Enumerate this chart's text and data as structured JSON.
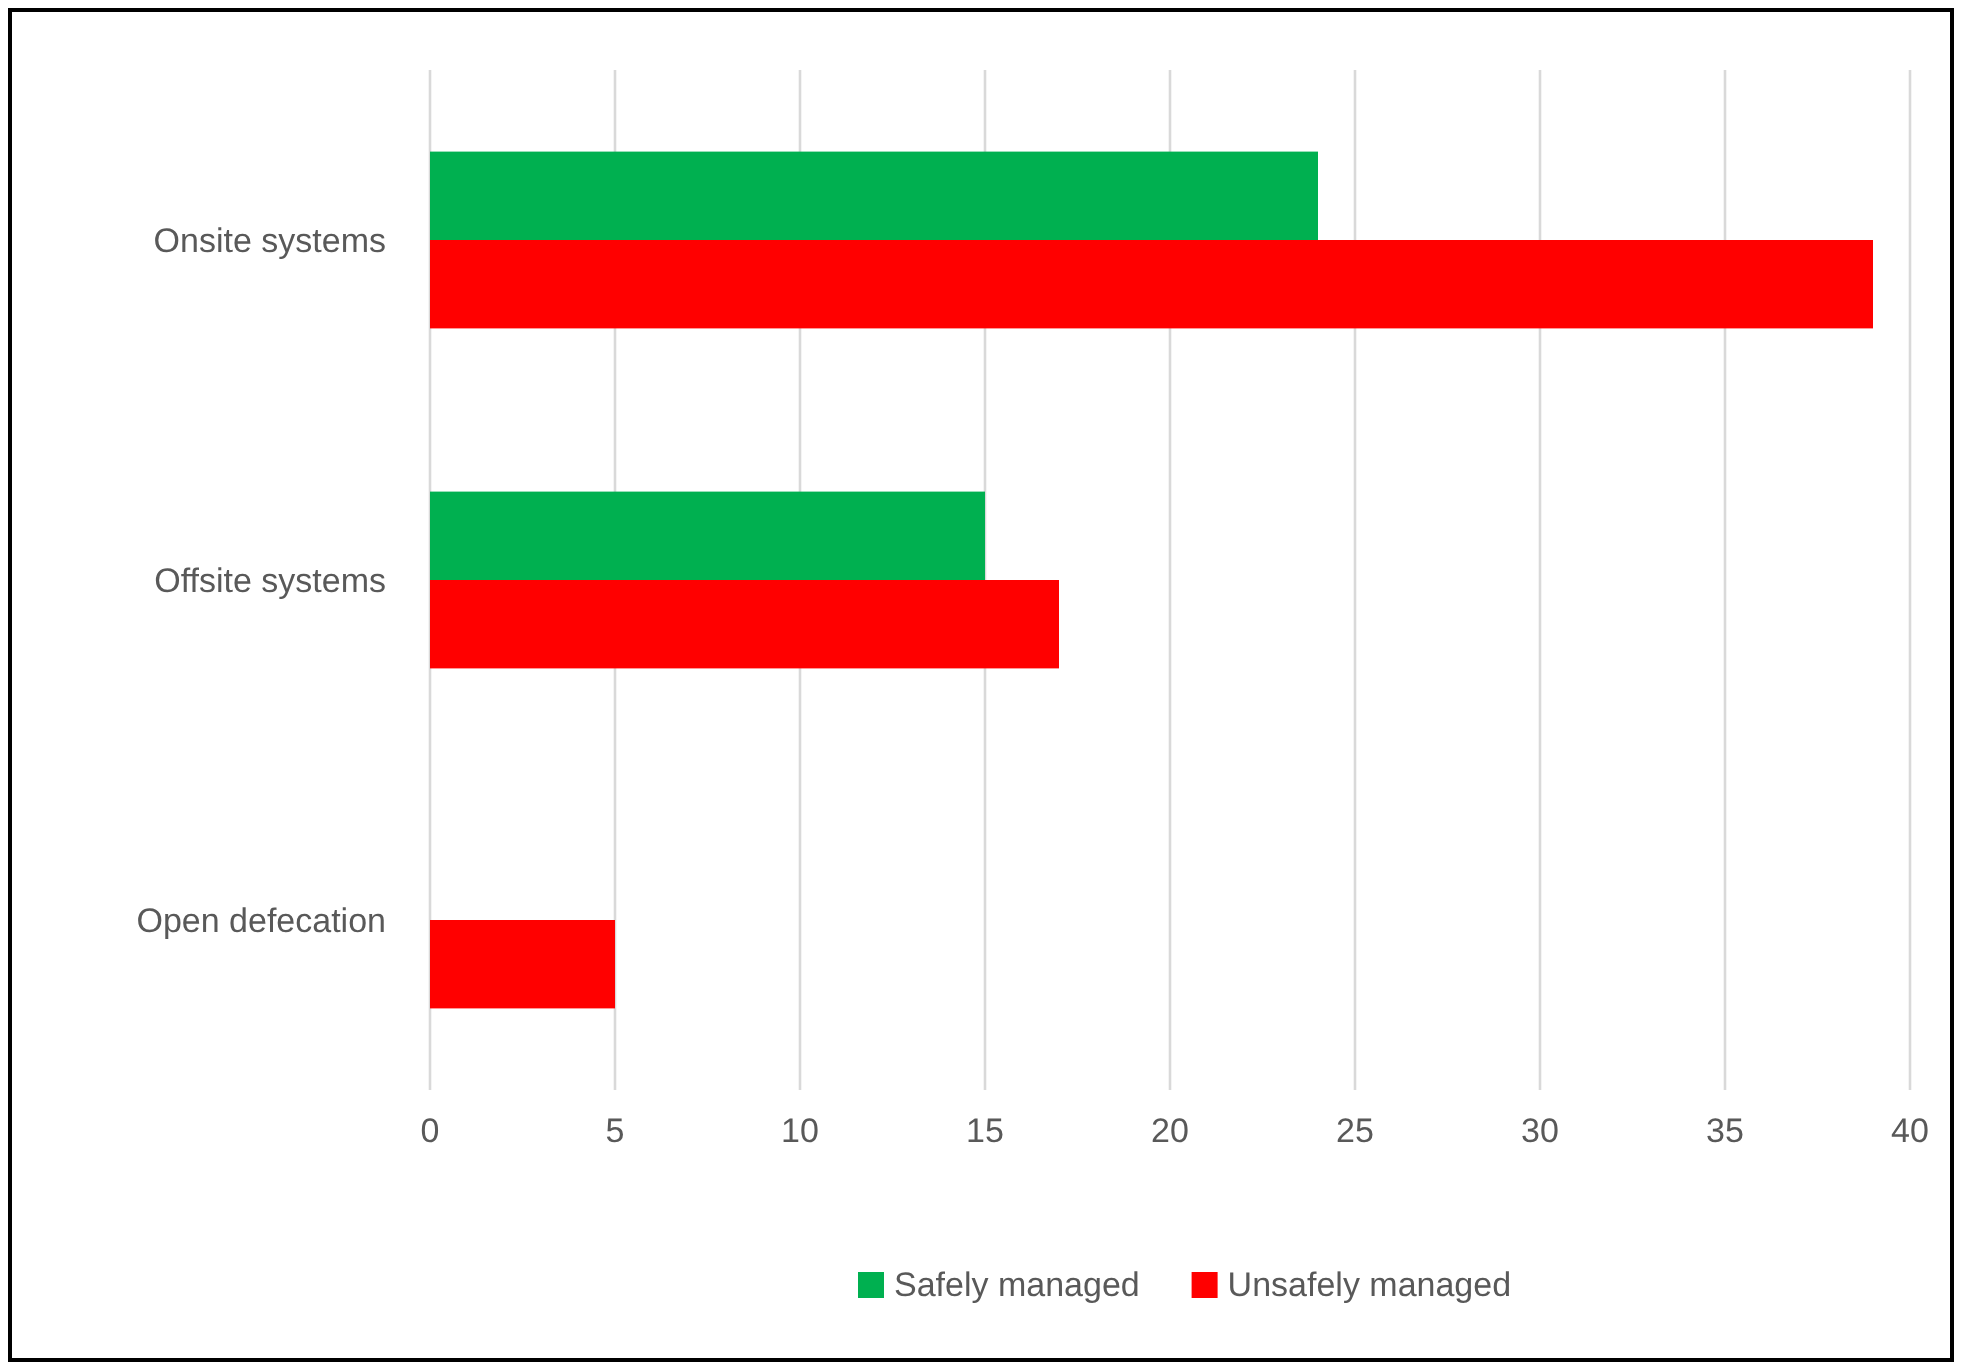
{
  "chart_data": {
    "type": "bar",
    "orientation": "horizontal",
    "categories": [
      "Onsite systems",
      "Offsite systems",
      "Open defecation"
    ],
    "series": [
      {
        "name": "Safely managed",
        "color": "#00b050",
        "values": [
          24,
          15,
          null
        ]
      },
      {
        "name": "Unsafely managed",
        "color": "#ff0000",
        "values": [
          39,
          17,
          5
        ]
      }
    ],
    "xlim": [
      0,
      40
    ],
    "xticks": [
      0,
      5,
      10,
      15,
      20,
      25,
      30,
      35,
      40
    ],
    "grid": "x",
    "legend": "bottom"
  }
}
